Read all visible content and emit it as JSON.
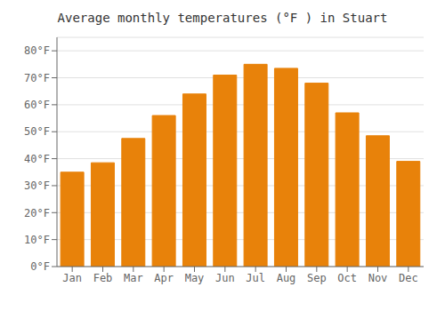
{
  "chart_data": {
    "type": "bar",
    "title": "Average monthly temperatures (°F ) in Stuart",
    "categories": [
      "Jan",
      "Feb",
      "Mar",
      "Apr",
      "May",
      "Jun",
      "Jul",
      "Aug",
      "Sep",
      "Oct",
      "Nov",
      "Dec"
    ],
    "values": [
      35,
      38.5,
      47.5,
      56,
      64,
      71,
      75,
      73.5,
      68,
      57,
      48.5,
      39
    ],
    "color": "#E8820A",
    "ylim": [
      0,
      85
    ],
    "yticks": [
      {
        "value": 0,
        "label": "0°F"
      },
      {
        "value": 10,
        "label": "10°F"
      },
      {
        "value": 20,
        "label": "20°F"
      },
      {
        "value": 30,
        "label": "30°F"
      },
      {
        "value": 40,
        "label": "40°F"
      },
      {
        "value": 50,
        "label": "50°F"
      },
      {
        "value": 60,
        "label": "60°F"
      },
      {
        "value": 70,
        "label": "70°F"
      },
      {
        "value": 80,
        "label": "80°F"
      }
    ],
    "grid": true
  }
}
